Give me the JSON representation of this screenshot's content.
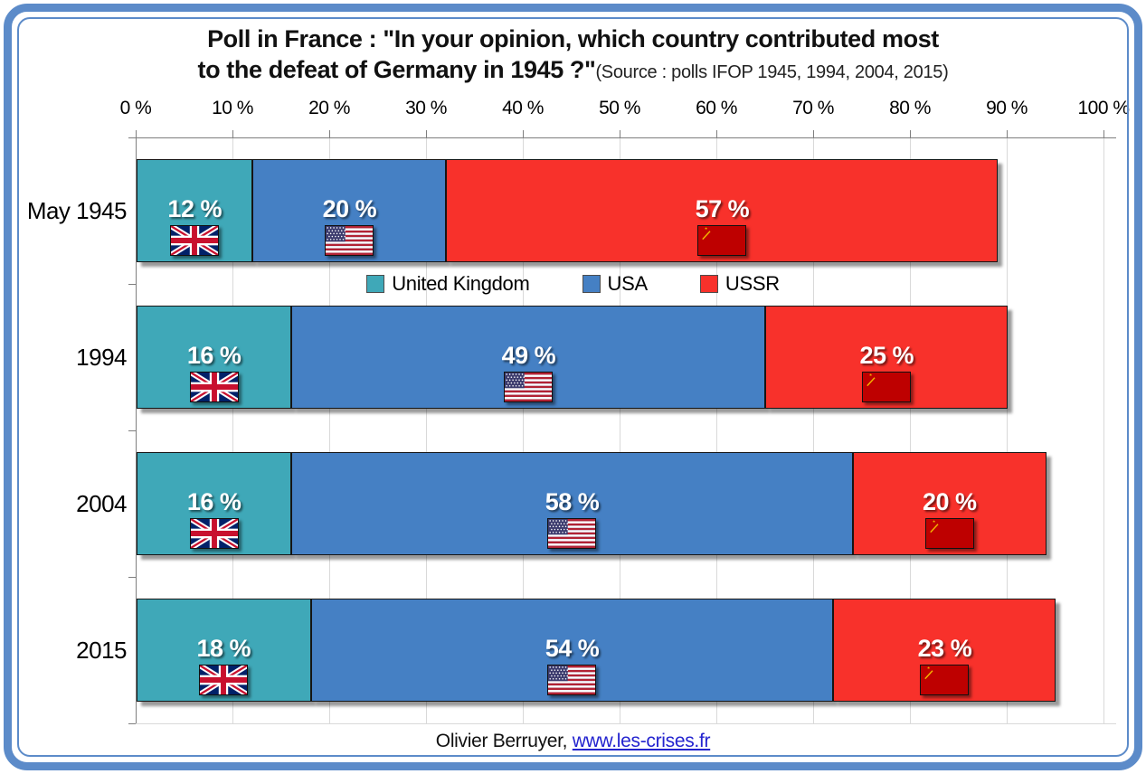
{
  "title": {
    "line1": "Poll in France : \"In your opinion, which country contributed most",
    "line2_bold": "to the defeat of Germany in 1945 ?\"",
    "line2_source": "(Source : polls IFOP 1945, 1994, 2004, 2015)"
  },
  "chart_data": {
    "type": "bar",
    "orientation": "horizontal-stacked",
    "categories": [
      "May 1945",
      "1994",
      "2004",
      "2015"
    ],
    "series": [
      {
        "name": "United Kingdom",
        "color": "#3FA8B8",
        "flag": "uk",
        "values": [
          12,
          16,
          16,
          18
        ]
      },
      {
        "name": "USA",
        "color": "#4580C4",
        "flag": "usa",
        "values": [
          20,
          49,
          58,
          54
        ]
      },
      {
        "name": "USSR",
        "color": "#F8312B",
        "flag": "ussr",
        "values": [
          57,
          25,
          20,
          23
        ]
      }
    ],
    "value_suffix": " %",
    "xlabel": "",
    "ylabel": "",
    "x_axis": {
      "position": "top",
      "min": 0,
      "max": 100,
      "ticks": [
        "0 %",
        "10 %",
        "20 %",
        "30 %",
        "40 %",
        "50 %",
        "60 %",
        "70 %",
        "80 %",
        "90 %",
        "100 %"
      ]
    },
    "grid": "on",
    "legend": [
      "United Kingdom",
      "USA",
      "USSR"
    ],
    "legend_position": "inside-top-center"
  },
  "footer": {
    "author": "Olivier Berruyer,",
    "link": "www.les-crises.fr"
  },
  "colors": {
    "frame": "#5C8BC9",
    "axis": "#7F7F7F",
    "grid": "#D9D9D9",
    "link": "#2323CF"
  }
}
